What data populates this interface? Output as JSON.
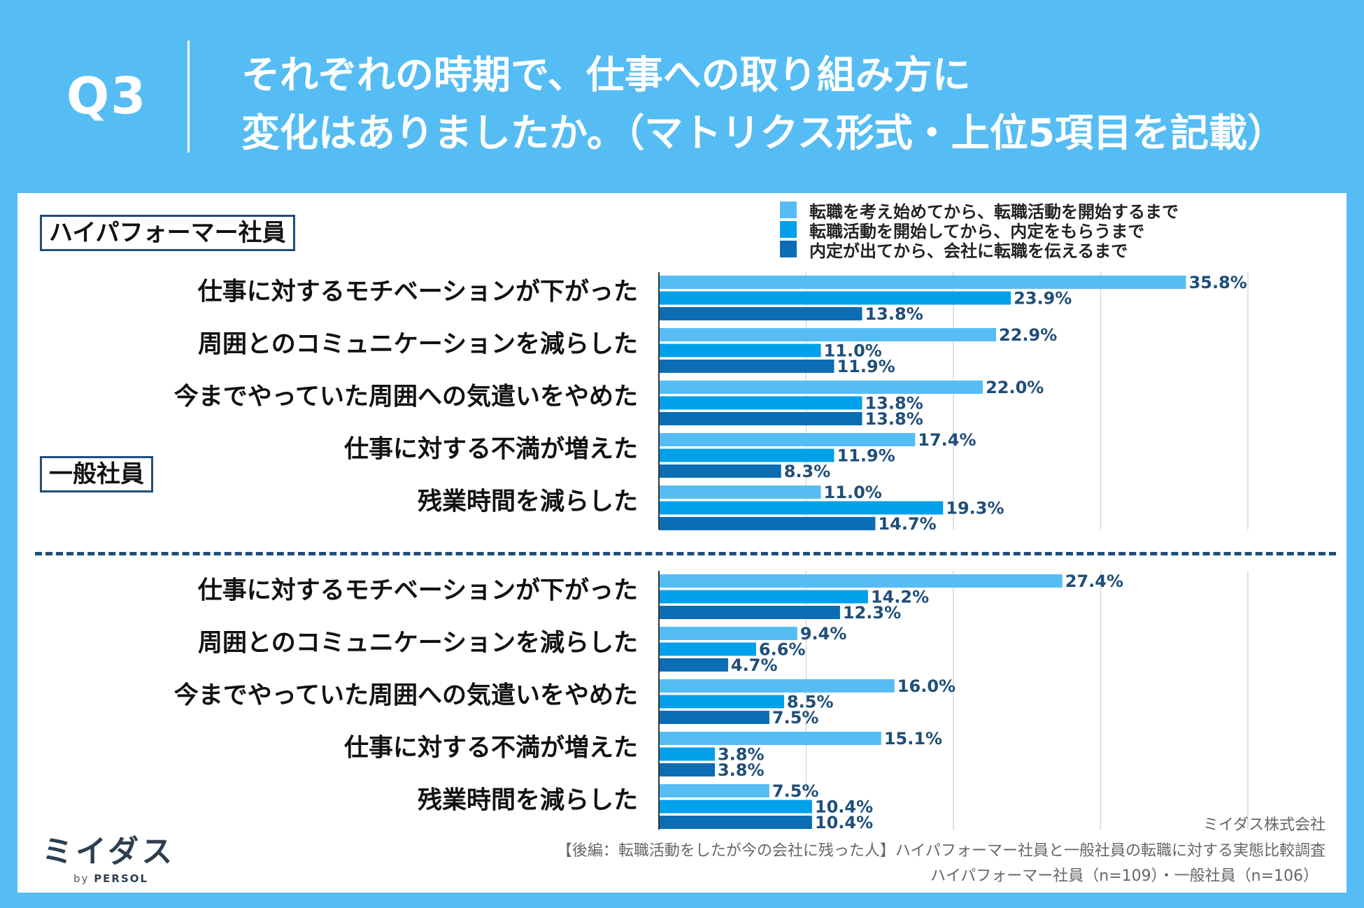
{
  "header": {
    "q_label": "Q3",
    "title_line1": "それぞれの時期で、仕事への取り組み方に",
    "title_line2": "変化はありましたか。（マトリクス形式・上位5項目を記載）"
  },
  "colors": {
    "background": "#56bdf4",
    "series": [
      "#56bdf4",
      "#00a0ea",
      "#0b6db3"
    ],
    "frame": "#1f4e79"
  },
  "chart_data": [
    {
      "type": "bar",
      "orientation": "horizontal",
      "group": "ハイパフォーマー社員",
      "categories": [
        "仕事に対するモチベーションが下がった",
        "周囲とのコミュニケーションを減らした",
        "今までやっていた周囲への気遣いをやめた",
        "仕事に対する不満が増えた",
        "残業時間を減らした"
      ],
      "series": [
        {
          "name": "転職を考え始めてから、転職活動を開始するまで",
          "values": [
            35.8,
            22.9,
            22.0,
            17.4,
            11.0
          ]
        },
        {
          "name": "転職活動を開始してから、内定をもらうまで",
          "values": [
            23.9,
            11.0,
            13.8,
            11.9,
            19.3
          ]
        },
        {
          "name": "内定が出てから、会社に転職を伝えるまで",
          "values": [
            13.8,
            11.9,
            13.8,
            8.3,
            14.7
          ]
        }
      ],
      "xlim": [
        0,
        40
      ],
      "unit": "%",
      "grid": true
    },
    {
      "type": "bar",
      "orientation": "horizontal",
      "group": "一般社員",
      "categories": [
        "仕事に対するモチベーションが下がった",
        "周囲とのコミュニケーションを減らした",
        "今までやっていた周囲への気遣いをやめた",
        "仕事に対する不満が増えた",
        "残業時間を減らした"
      ],
      "series": [
        {
          "name": "転職を考え始めてから、転職活動を開始するまで",
          "values": [
            27.4,
            9.4,
            16.0,
            15.1,
            7.5
          ]
        },
        {
          "name": "転職活動を開始してから、内定をもらうまで",
          "values": [
            14.2,
            6.6,
            8.5,
            3.8,
            10.4
          ]
        },
        {
          "name": "内定が出てから、会社に転職を伝えるまで",
          "values": [
            12.3,
            4.7,
            7.5,
            3.8,
            10.4
          ]
        }
      ],
      "xlim": [
        0,
        40
      ],
      "unit": "%",
      "grid": true
    }
  ],
  "legend": {
    "placement": "top-right",
    "items": [
      "転職を考え始めてから、転職活動を開始するまで",
      "転職活動を開始してから、内定をもらうまで",
      "内定が出てから、会社に転職を伝えるまで"
    ]
  },
  "footer": {
    "company": "ミイダス株式会社",
    "survey": "【後編：転職活動をしたが今の会社に残った人】ハイパフォーマー社員と一般社員の転職に対する実態比較調査",
    "sample": "ハイパフォーマー社員（n=109）・一般社員（n=106）"
  },
  "logo": {
    "main": "ミイダス",
    "by": "by",
    "brand": "PERSOL"
  }
}
